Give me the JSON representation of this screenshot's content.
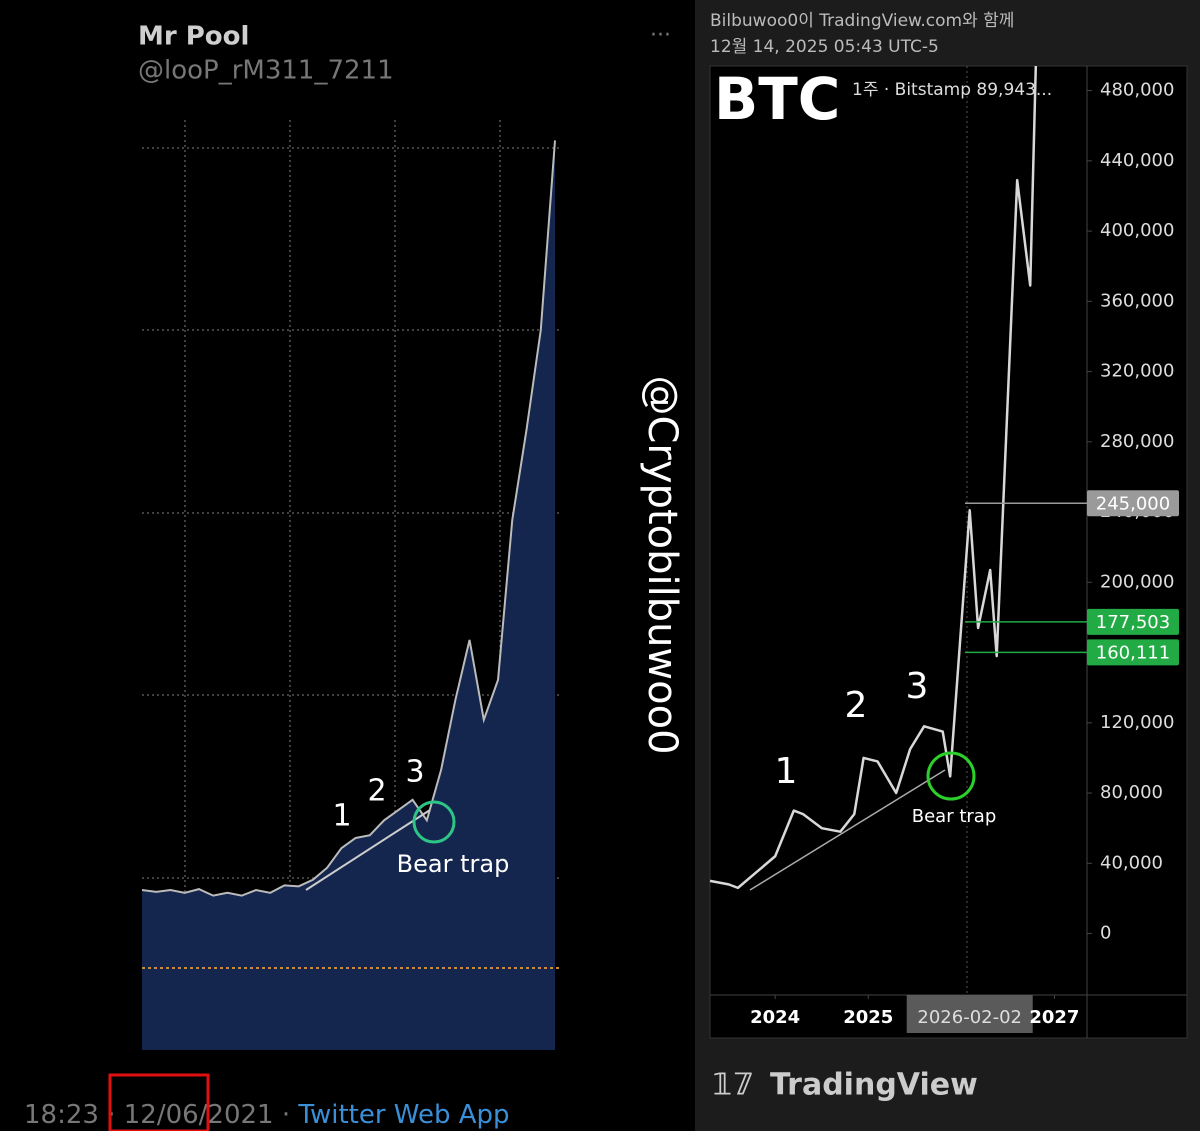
{
  "tweet": {
    "name": "Mr Pool",
    "handle": "@looP_rM311_7211",
    "time": "18:23",
    "date": "12/06/2021",
    "source": "Twitter Web App",
    "watermark": "@Cryptobilbuwoo0",
    "annotations": [
      "1",
      "2",
      "3",
      "Bear trap"
    ],
    "chart": {
      "ylim": [
        0,
        100
      ],
      "values": [
        17.2,
        17.0,
        17.2,
        16.9,
        17.3,
        16.6,
        16.9,
        16.6,
        17.2,
        16.9,
        17.7,
        17.6,
        18.3,
        19.6,
        21.7,
        22.8,
        23.1,
        24.7,
        25.8,
        26.9,
        24.7,
        30.1,
        37.6,
        44.1,
        35.5,
        39.8,
        57.0,
        66.7,
        77.4,
        97.8
      ]
    }
  },
  "chart_data": {
    "type": "line",
    "header": "Bilbuwoo0이 TradingView.com와 함께",
    "timestamp": "12월 14, 2025 05:43 UTC-5",
    "title": "BTC",
    "subtitle": "1주 · Bitstamp  89,943...",
    "brand": "TradingView",
    "annotations": [
      "1",
      "2",
      "3",
      "Bear trap"
    ],
    "color": "#d8d8d8",
    "x": [
      2023.3,
      2023.5,
      2023.6,
      2023.8,
      2024.0,
      2024.2,
      2024.3,
      2024.5,
      2024.7,
      2024.85,
      2024.95,
      2025.1,
      2025.3,
      2025.45,
      2025.6,
      2025.8,
      2025.88,
      2026.09,
      2026.18,
      2026.31,
      2026.38,
      2026.6,
      2026.74,
      2026.8
    ],
    "values": [
      30000,
      28000,
      26000,
      35000,
      44000,
      70000,
      68000,
      60000,
      58000,
      68000,
      100000,
      98000,
      80000,
      105000,
      118000,
      115000,
      89500,
      241000,
      174000,
      207000,
      158000,
      429000,
      369000,
      494000
    ],
    "xlim": [
      2023.3,
      2027.35
    ],
    "xticks": [
      2024,
      2025,
      {
        "value": 2026.09,
        "label": "2026-02-02"
      },
      2027
    ],
    "ylim": [
      -35000,
      494000
    ],
    "yticks": [
      0,
      {
        "value": 40000,
        "label": "40,000"
      },
      {
        "value": 80000,
        "label": "80,000"
      },
      {
        "value": 120000,
        "label": "120,000"
      },
      {
        "value": 160000,
        "label": "160,000"
      },
      {
        "value": 200000,
        "label": "200,000"
      },
      {
        "value": 240000,
        "label": "240,000"
      },
      {
        "value": 280000,
        "label": "280,000"
      },
      {
        "value": 320000,
        "label": "320,000"
      },
      {
        "value": 360000,
        "label": "360,000"
      },
      {
        "value": 400000,
        "label": "400,000"
      },
      {
        "value": 440000,
        "label": "440,000"
      },
      {
        "value": 480000,
        "label": "480,000"
      }
    ],
    "price_labels": [
      {
        "value": 245000,
        "label": "245,000",
        "color": "#9a9a9a"
      },
      {
        "value": 177503,
        "label": "177,503",
        "color": "#22aa44"
      },
      {
        "value": 160111,
        "label": "160,111",
        "color": "#22aa44"
      }
    ]
  }
}
